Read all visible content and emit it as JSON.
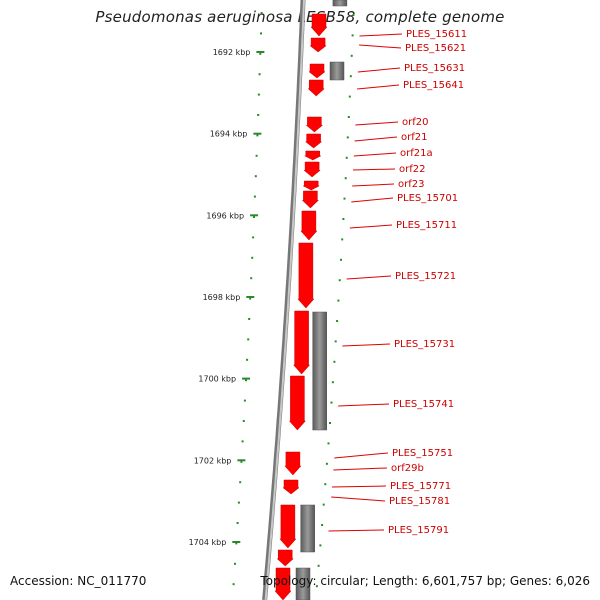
{
  "title": "Pseudomonas aeruginosa LESB58, complete genome",
  "footer": {
    "accession": "Accession: NC_011770",
    "summary": "Topology: circular; Length: 6,601,757 bp; Genes: 6,026"
  },
  "colors": {
    "gene_fill": "#ff0000",
    "gene_label": "#cc0000",
    "other_feature": "#707070",
    "tick": "#2a8a2a",
    "backbone": "#8c8c8c"
  },
  "ruler": [
    {
      "kbp": 1692,
      "label": "1692 kbp"
    },
    {
      "kbp": 1694,
      "label": "1694 kbp"
    },
    {
      "kbp": 1696,
      "label": "1696 kbp"
    },
    {
      "kbp": 1698,
      "label": "1698 kbp"
    },
    {
      "kbp": 1700,
      "label": "1700 kbp"
    },
    {
      "kbp": 1702,
      "label": "1702 kbp"
    },
    {
      "kbp": 1704,
      "label": "1704 kbp"
    }
  ],
  "genes": [
    {
      "label": "PLES_15611"
    },
    {
      "label": "PLES_15621"
    },
    {
      "label": "PLES_15631"
    },
    {
      "label": "PLES_15641"
    },
    {
      "label": "orf20"
    },
    {
      "label": "orf21"
    },
    {
      "label": "orf21a"
    },
    {
      "label": "orf22"
    },
    {
      "label": "orf23"
    },
    {
      "label": "PLES_15701"
    },
    {
      "label": "PLES_15711"
    },
    {
      "label": "PLES_15721"
    },
    {
      "label": "PLES_15731"
    },
    {
      "label": "PLES_15741"
    },
    {
      "label": "PLES_15751"
    },
    {
      "label": "orf29b"
    },
    {
      "label": "PLES_15771"
    },
    {
      "label": "PLES_15781"
    },
    {
      "label": "PLES_15791"
    }
  ]
}
